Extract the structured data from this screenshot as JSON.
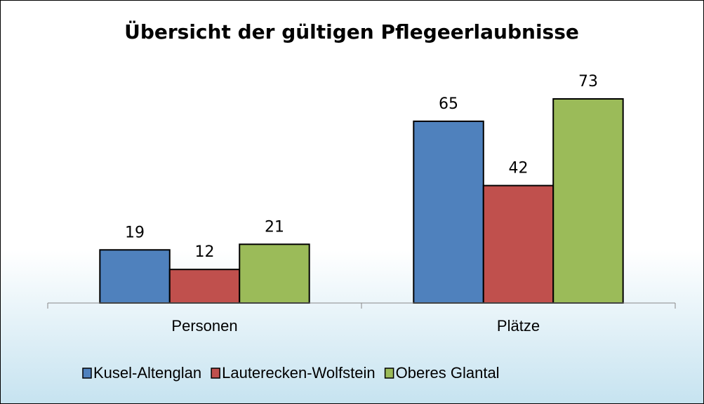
{
  "chart_data": {
    "type": "bar",
    "title": "Übersicht der gültigen Pflegeerlaubnisse",
    "categories": [
      "Personen",
      "Plätze"
    ],
    "series": [
      {
        "name": "Kusel-Altenglan",
        "color": "#4f81bd",
        "values": [
          19,
          65
        ]
      },
      {
        "name": "Lauterecken-Wolfstein",
        "color": "#c0504d",
        "values": [
          12,
          42
        ]
      },
      {
        "name": "Oberes Glantal",
        "color": "#9bbb59",
        "values": [
          21,
          73
        ]
      }
    ],
    "legend": "bottom"
  }
}
